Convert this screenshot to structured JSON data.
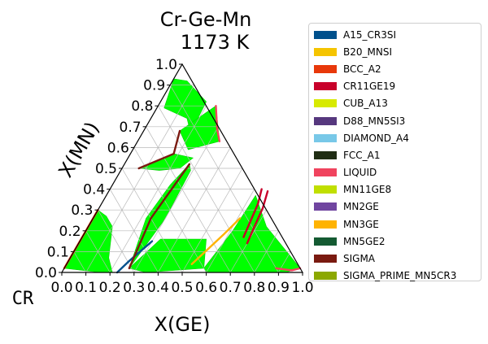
{
  "chart_data": {
    "type": "ternary-phase-diagram",
    "title": "Cr-Ge-Mn",
    "subtitle": "1173  K",
    "xlabel": "X(GE)",
    "ylabel": "X(MN)",
    "corner_label": "CR",
    "xlim": [
      0.0,
      1.0
    ],
    "ylim": [
      0.0,
      1.0
    ],
    "ticks": [
      "0.0",
      "0.1",
      "0.2",
      "0.3",
      "0.4",
      "0.5",
      "0.6",
      "0.7",
      "0.8",
      "0.9",
      "1.0"
    ],
    "grid": true,
    "legend_position": "right",
    "series": [
      {
        "name": "A15_CR3SI",
        "color": "#00508c"
      },
      {
        "name": "B20_MNSI",
        "color": "#f5c400"
      },
      {
        "name": "BCC_A2",
        "color": "#e8380a"
      },
      {
        "name": "CR11GE19",
        "color": "#c8002a"
      },
      {
        "name": "CUB_A13",
        "color": "#d7ea00"
      },
      {
        "name": "D88_MN5SI3",
        "color": "#56387e"
      },
      {
        "name": "DIAMOND_A4",
        "color": "#78c8e8"
      },
      {
        "name": "FCC_A1",
        "color": "#202d14"
      },
      {
        "name": "LIQUID",
        "color": "#f0435e"
      },
      {
        "name": "MN11GE8",
        "color": "#c0df00"
      },
      {
        "name": "MN2GE",
        "color": "#7045a0"
      },
      {
        "name": "MN3GE",
        "color": "#ffb300"
      },
      {
        "name": "MN5GE2",
        "color": "#145a32"
      },
      {
        "name": "SIGMA",
        "color": "#7a1a10"
      },
      {
        "name": "SIGMA_PRIME_MN5CR3",
        "color": "#8ca800"
      }
    ],
    "tie_line_region_color": "#00ff00",
    "regions": [
      {
        "points": [
          [
            0.21,
            0
          ],
          [
            0.16,
            0.07
          ],
          [
            0.1,
            0.22
          ],
          [
            0.05,
            0.27
          ],
          [
            0.0,
            0.3
          ],
          [
            0.0,
            0.02
          ],
          [
            0.16,
            0
          ]
        ]
      },
      {
        "points": [
          [
            0.27,
            0.02
          ],
          [
            0.33,
            0.16
          ],
          [
            0.52,
            0.16
          ],
          [
            0.55,
            0.09
          ],
          [
            0.58,
            0.02
          ],
          [
            0.35,
            0
          ]
        ]
      },
      {
        "points": [
          [
            0.22,
            0.26
          ],
          [
            0.24,
            0.42
          ],
          [
            0.27,
            0.52
          ],
          [
            0.29,
            0.49
          ],
          [
            0.3,
            0.26
          ],
          [
            0.27,
            0.02
          ]
        ]
      },
      {
        "points": [
          [
            0.15,
            0.74
          ],
          [
            0.2,
            0.67
          ],
          [
            0.19,
            0.82
          ],
          [
            0.06,
            0.92
          ],
          [
            0.0,
            0.93
          ],
          [
            0.03,
            0.79
          ]
        ]
      },
      {
        "points": [
          [
            0.18,
            0.57
          ],
          [
            0.27,
            0.55
          ],
          [
            0.24,
            0.5
          ],
          [
            0.16,
            0.49
          ],
          [
            0.07,
            0.5
          ]
        ]
      },
      {
        "points": [
          [
            0.24,
            0.8
          ],
          [
            0.34,
            0.63
          ],
          [
            0.23,
            0.59
          ],
          [
            0.15,
            0.68
          ]
        ]
      },
      {
        "points": [
          [
            0.58,
            0.02
          ],
          [
            0.59,
            0.08
          ],
          [
            0.61,
            0.2
          ],
          [
            0.62,
            0.37
          ],
          [
            0.74,
            0.22
          ],
          [
            0.92,
            0.07
          ],
          [
            0.98,
            0.02
          ],
          [
            0.93,
            0.0
          ],
          [
            0.6,
            0.0
          ]
        ]
      }
    ],
    "phase_lines": [
      {
        "series": "A15_CR3SI",
        "points": [
          [
            0.23,
            0.0
          ],
          [
            0.25,
            0.05
          ],
          [
            0.27,
            0.09
          ],
          [
            0.3,
            0.15
          ]
        ]
      },
      {
        "series": "MN3GE",
        "points": [
          [
            0.52,
            0.04
          ],
          [
            0.55,
            0.11
          ],
          [
            0.58,
            0.18
          ],
          [
            0.61,
            0.26
          ]
        ]
      },
      {
        "series": "BCC_A2",
        "points": [
          [
            0.0,
            0.02
          ],
          [
            0.0,
            0.3
          ]
        ]
      },
      {
        "series": "CR11GE19",
        "points": [
          [
            0.63,
            0.4
          ],
          [
            0.65,
            0.33
          ],
          [
            0.66,
            0.25
          ],
          [
            0.67,
            0.17
          ]
        ]
      },
      {
        "series": "CR11GE19",
        "points": [
          [
            0.66,
            0.39
          ],
          [
            0.68,
            0.31
          ],
          [
            0.69,
            0.22
          ],
          [
            0.7,
            0.14
          ]
        ]
      },
      {
        "series": "SIGMA",
        "points": [
          [
            0.27,
            0.02
          ],
          [
            0.24,
            0.26
          ],
          [
            0.27,
            0.52
          ]
        ]
      },
      {
        "series": "SIGMA",
        "points": [
          [
            0.15,
            0.68
          ],
          [
            0.18,
            0.57
          ],
          [
            0.07,
            0.5
          ]
        ]
      },
      {
        "series": "LIQUID",
        "points": [
          [
            0.88,
            0.02
          ],
          [
            0.95,
            0.01
          ],
          [
            0.98,
            0.02
          ]
        ]
      },
      {
        "series": "LIQUID",
        "points": [
          [
            0.34,
            0.63
          ],
          [
            0.3,
            0.69
          ],
          [
            0.24,
            0.8
          ]
        ]
      }
    ]
  },
  "legend": [
    "A15_CR3SI",
    "B20_MNSI",
    "BCC_A2",
    "CR11GE19",
    "CUB_A13",
    "D88_MN5SI3",
    "DIAMOND_A4",
    "FCC_A1",
    "LIQUID",
    "MN11GE8",
    "MN2GE",
    "MN3GE",
    "MN5GE2",
    "SIGMA",
    "SIGMA_PRIME_MN5CR3"
  ]
}
